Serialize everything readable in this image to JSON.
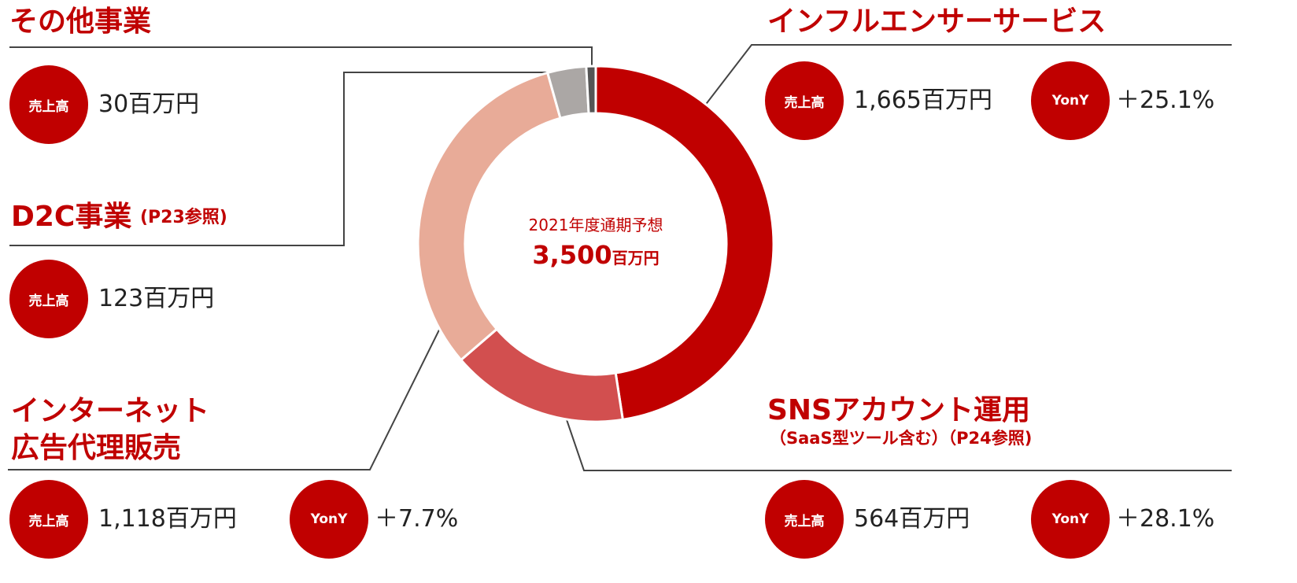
{
  "chart_data": {
    "type": "donut",
    "categories": [
      "インフルエンサーサービス",
      "SNSアカウント運用",
      "インターネット\n広告代理販売",
      "D2C事業",
      "その他事業"
    ],
    "category_notes": [
      null,
      "（SaaS型ツール含む）（P24参照)",
      null,
      "(P23参照)",
      null
    ],
    "values": [
      1665,
      564,
      1118,
      123,
      30
    ],
    "value_labels": [
      "1,665百万円",
      "564百万円",
      "1,118百万円",
      "123百万円",
      "30百万円"
    ],
    "yony_labels": [
      "＋25.1%",
      "＋28.1%",
      "＋7.7%",
      null,
      null
    ],
    "colors": [
      "#c00000",
      "#d24f4f",
      "#e8ab98",
      "#aba7a5",
      "#555555"
    ],
    "badge_sales": "売上高",
    "badge_yony": "YonY",
    "center_title": "2021年度通期予想",
    "total": 3500,
    "total_label": "3,500",
    "total_unit": "百万円"
  }
}
